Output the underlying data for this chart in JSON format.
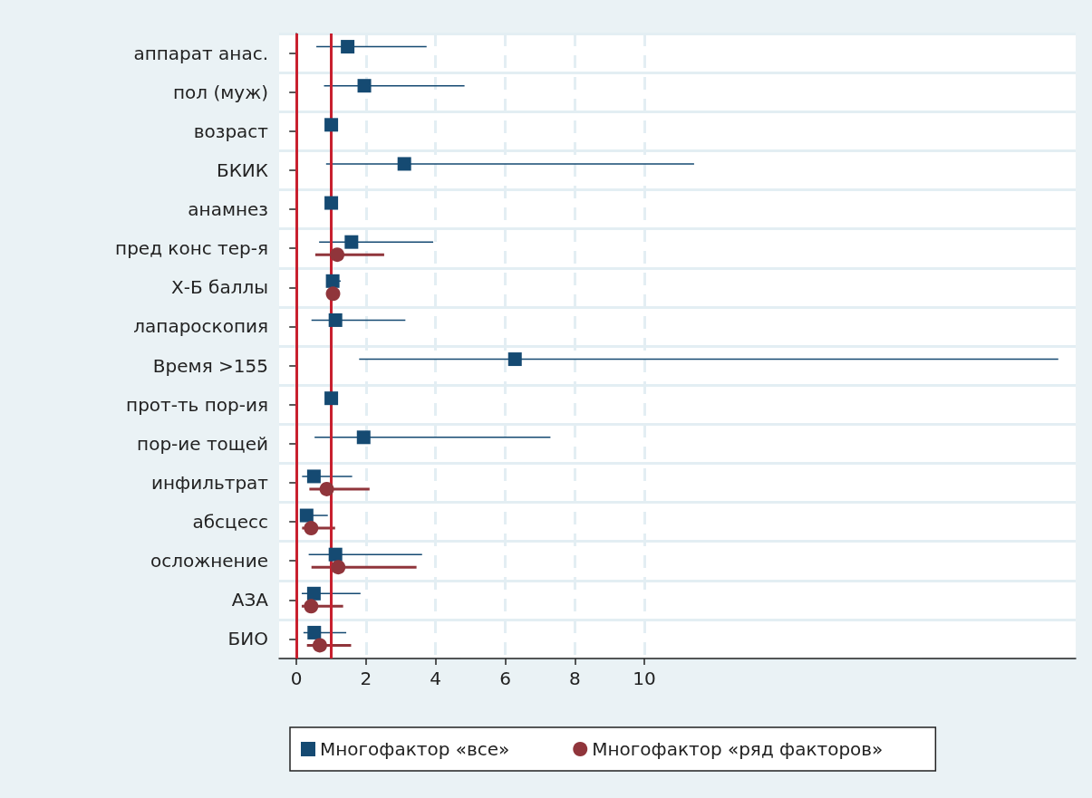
{
  "chart_data": {
    "type": "scatter",
    "orientation": "horizontal",
    "categories": [
      "аппарат анас.",
      "пол (муж)",
      "возраст",
      "БКИК",
      "анамнез",
      "пред конс тер-я",
      "Х-Б баллы",
      "лапароскопия",
      "Время >155",
      "прот-ть пор-ия",
      "пор-ие тощей",
      "инфильтрат",
      "абсцесс",
      "осложнение",
      "АЗА",
      "БИО"
    ],
    "series": [
      {
        "name": "Многофактор «все»",
        "color": "#154a72",
        "marker": "square",
        "values": [
          1.47,
          1.95,
          1.0,
          3.1,
          1.0,
          1.58,
          1.04,
          1.12,
          6.28,
          1.0,
          1.93,
          0.5,
          0.29,
          1.12,
          0.5,
          0.51
        ],
        "errors": [
          [
            0.57,
            3.74
          ],
          [
            0.79,
            4.83
          ],
          null,
          [
            0.85,
            11.43
          ],
          null,
          [
            0.65,
            3.93
          ],
          [
            1.0,
            1.27
          ],
          [
            0.43,
            3.13
          ],
          [
            1.8,
            21.9
          ],
          null,
          [
            0.52,
            7.3
          ],
          [
            0.16,
            1.6
          ],
          [
            0.2,
            0.9
          ],
          [
            0.35,
            3.61
          ],
          [
            0.15,
            1.84
          ],
          [
            0.2,
            1.43
          ]
        ]
      },
      {
        "name": "Многофактор «ряд факторов»",
        "color": "#90353b",
        "marker": "circle",
        "values": [
          null,
          null,
          null,
          null,
          null,
          1.17,
          1.05,
          null,
          null,
          null,
          null,
          0.87,
          0.42,
          1.2,
          0.42,
          0.67
        ],
        "errors": [
          null,
          null,
          null,
          null,
          null,
          [
            0.54,
            2.52
          ],
          null,
          null,
          null,
          null,
          null,
          [
            0.37,
            2.1
          ],
          [
            0.16,
            1.11
          ],
          [
            0.43,
            3.45
          ],
          [
            0.15,
            1.34
          ],
          [
            0.3,
            1.57
          ]
        ]
      }
    ],
    "xlim": [
      -0.5,
      22.4
    ],
    "xticks": [
      0,
      2,
      4,
      6,
      8,
      10
    ],
    "ref_lines": [
      {
        "axis": "x",
        "value": 0,
        "color": "#c8202f"
      },
      {
        "axis": "x",
        "value": 1,
        "color": "#c8202f"
      }
    ],
    "grid": true,
    "legend": "bottom"
  }
}
